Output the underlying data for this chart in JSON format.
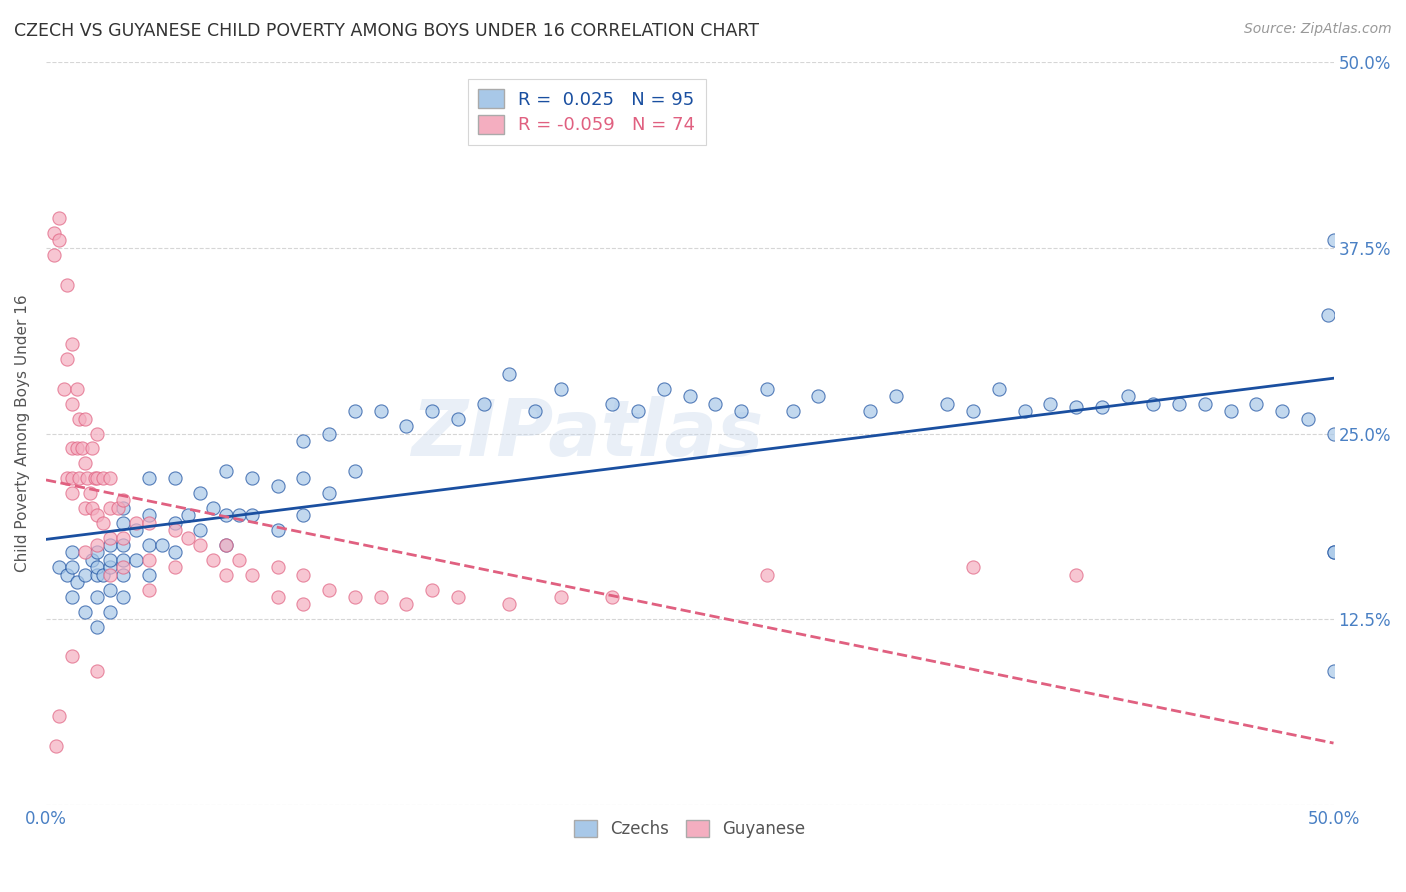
{
  "title": "CZECH VS GUYANESE CHILD POVERTY AMONG BOYS UNDER 16 CORRELATION CHART",
  "source": "Source: ZipAtlas.com",
  "ylabel": "Child Poverty Among Boys Under 16",
  "xlim": [
    0,
    0.5
  ],
  "ylim": [
    0,
    0.5
  ],
  "czech_R": 0.025,
  "czech_N": 95,
  "guyanese_R": -0.059,
  "guyanese_N": 74,
  "czech_color": "#a8c8e8",
  "guyanese_color": "#f4aec0",
  "czech_line_color": "#1a4fa0",
  "guyanese_line_color": "#e06080",
  "watermark": "ZIPatlas",
  "background_color": "#ffffff",
  "czech_x": [
    0.005,
    0.008,
    0.01,
    0.01,
    0.01,
    0.012,
    0.015,
    0.015,
    0.018,
    0.02,
    0.02,
    0.02,
    0.02,
    0.02,
    0.022,
    0.025,
    0.025,
    0.025,
    0.025,
    0.025,
    0.03,
    0.03,
    0.03,
    0.03,
    0.03,
    0.03,
    0.035,
    0.035,
    0.04,
    0.04,
    0.04,
    0.04,
    0.045,
    0.05,
    0.05,
    0.05,
    0.055,
    0.06,
    0.06,
    0.065,
    0.07,
    0.07,
    0.07,
    0.075,
    0.08,
    0.08,
    0.09,
    0.09,
    0.1,
    0.1,
    0.1,
    0.11,
    0.11,
    0.12,
    0.12,
    0.13,
    0.14,
    0.15,
    0.16,
    0.17,
    0.18,
    0.19,
    0.2,
    0.22,
    0.23,
    0.24,
    0.25,
    0.26,
    0.27,
    0.28,
    0.29,
    0.3,
    0.32,
    0.33,
    0.35,
    0.36,
    0.37,
    0.38,
    0.39,
    0.4,
    0.41,
    0.42,
    0.43,
    0.44,
    0.45,
    0.46,
    0.47,
    0.48,
    0.49,
    0.498,
    0.5,
    0.5,
    0.5,
    0.5,
    0.5
  ],
  "czech_y": [
    0.16,
    0.155,
    0.17,
    0.14,
    0.16,
    0.15,
    0.155,
    0.13,
    0.165,
    0.17,
    0.155,
    0.14,
    0.16,
    0.12,
    0.155,
    0.175,
    0.16,
    0.145,
    0.165,
    0.13,
    0.2,
    0.19,
    0.175,
    0.165,
    0.155,
    0.14,
    0.185,
    0.165,
    0.22,
    0.195,
    0.175,
    0.155,
    0.175,
    0.22,
    0.19,
    0.17,
    0.195,
    0.21,
    0.185,
    0.2,
    0.225,
    0.195,
    0.175,
    0.195,
    0.22,
    0.195,
    0.215,
    0.185,
    0.245,
    0.22,
    0.195,
    0.25,
    0.21,
    0.265,
    0.225,
    0.265,
    0.255,
    0.265,
    0.26,
    0.27,
    0.29,
    0.265,
    0.28,
    0.27,
    0.265,
    0.28,
    0.275,
    0.27,
    0.265,
    0.28,
    0.265,
    0.275,
    0.265,
    0.275,
    0.27,
    0.265,
    0.28,
    0.265,
    0.27,
    0.268,
    0.268,
    0.275,
    0.27,
    0.27,
    0.27,
    0.265,
    0.27,
    0.265,
    0.26,
    0.33,
    0.09,
    0.17,
    0.38,
    0.25,
    0.17
  ],
  "guyanese_x": [
    0.003,
    0.003,
    0.004,
    0.005,
    0.005,
    0.005,
    0.007,
    0.008,
    0.008,
    0.008,
    0.01,
    0.01,
    0.01,
    0.01,
    0.01,
    0.01,
    0.012,
    0.012,
    0.013,
    0.013,
    0.014,
    0.015,
    0.015,
    0.015,
    0.015,
    0.016,
    0.017,
    0.018,
    0.018,
    0.019,
    0.02,
    0.02,
    0.02,
    0.02,
    0.02,
    0.022,
    0.022,
    0.025,
    0.025,
    0.025,
    0.025,
    0.028,
    0.03,
    0.03,
    0.03,
    0.035,
    0.04,
    0.04,
    0.04,
    0.05,
    0.05,
    0.055,
    0.06,
    0.065,
    0.07,
    0.07,
    0.075,
    0.08,
    0.09,
    0.09,
    0.1,
    0.1,
    0.11,
    0.12,
    0.13,
    0.14,
    0.15,
    0.16,
    0.18,
    0.2,
    0.22,
    0.28,
    0.36,
    0.4
  ],
  "guyanese_y": [
    0.37,
    0.385,
    0.04,
    0.395,
    0.38,
    0.06,
    0.28,
    0.35,
    0.3,
    0.22,
    0.31,
    0.27,
    0.24,
    0.21,
    0.22,
    0.1,
    0.28,
    0.24,
    0.26,
    0.22,
    0.24,
    0.26,
    0.23,
    0.2,
    0.17,
    0.22,
    0.21,
    0.24,
    0.2,
    0.22,
    0.25,
    0.22,
    0.195,
    0.175,
    0.09,
    0.22,
    0.19,
    0.22,
    0.2,
    0.18,
    0.155,
    0.2,
    0.205,
    0.18,
    0.16,
    0.19,
    0.19,
    0.165,
    0.145,
    0.185,
    0.16,
    0.18,
    0.175,
    0.165,
    0.175,
    0.155,
    0.165,
    0.155,
    0.16,
    0.14,
    0.155,
    0.135,
    0.145,
    0.14,
    0.14,
    0.135,
    0.145,
    0.14,
    0.135,
    0.14,
    0.14,
    0.155,
    0.16,
    0.155
  ]
}
